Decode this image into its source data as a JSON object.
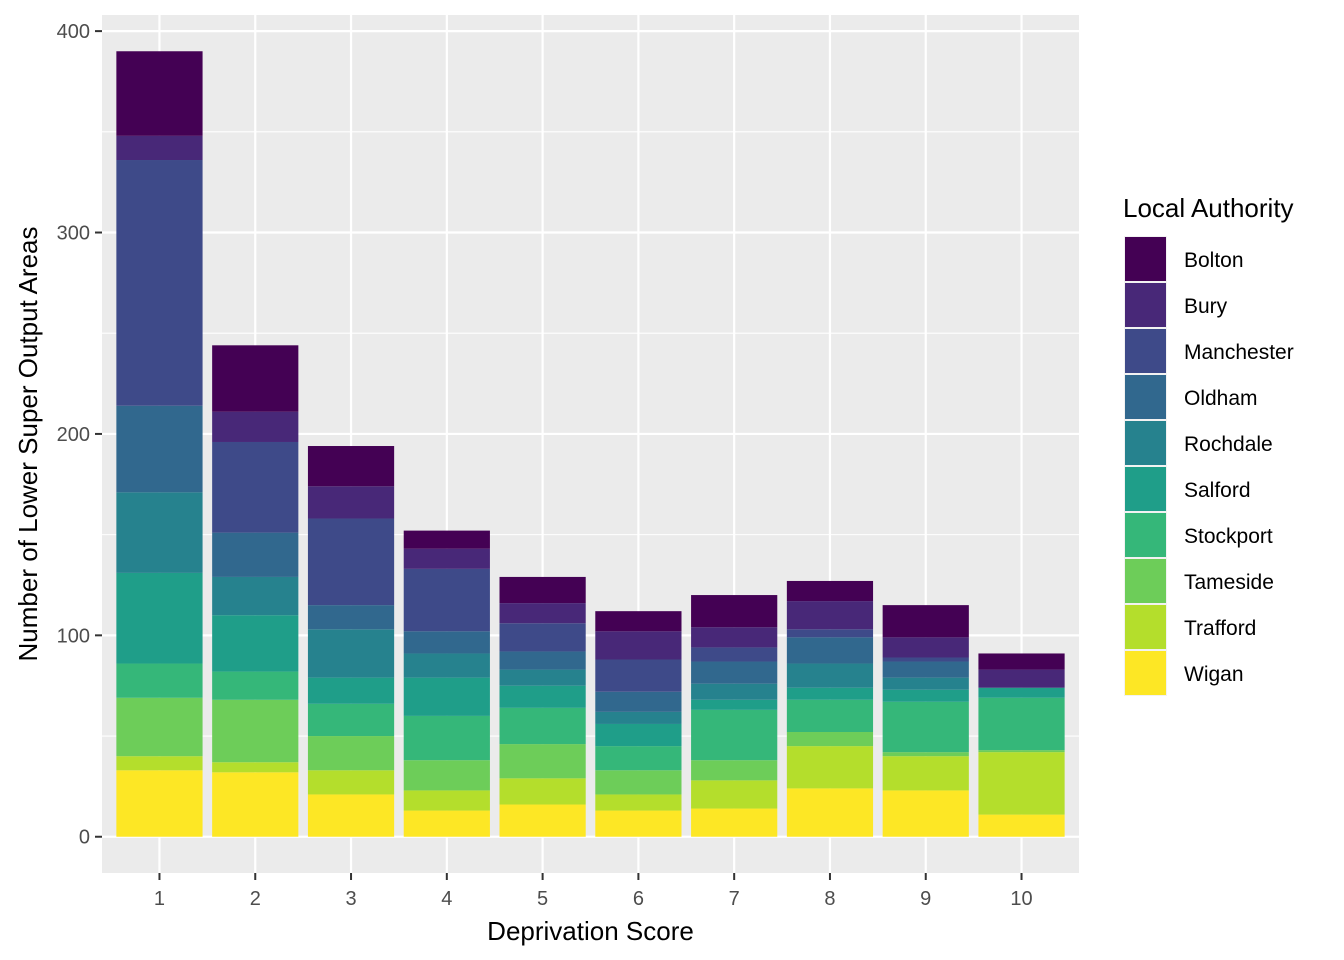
{
  "chart_data": {
    "type": "bar",
    "stacked": true,
    "xlabel": "Deprivation Score",
    "ylabel": "Number of Lower Super Output Areas",
    "categories": [
      "1",
      "2",
      "3",
      "4",
      "5",
      "6",
      "7",
      "8",
      "9",
      "10"
    ],
    "ylim": [
      -18,
      408
    ],
    "yticks": [
      0,
      100,
      200,
      300,
      400
    ],
    "grid": true,
    "legend_title": "Local Authority",
    "legend_position": "right",
    "series": [
      {
        "name": "Bolton",
        "color": "#440154",
        "values": [
          42,
          33,
          20,
          9,
          13,
          10,
          16,
          10,
          16,
          8
        ]
      },
      {
        "name": "Bury",
        "color": "#482878",
        "values": [
          12,
          15,
          16,
          10,
          10,
          14,
          10,
          14,
          10,
          9
        ]
      },
      {
        "name": "Manchester",
        "color": "#3E4A89",
        "values": [
          122,
          45,
          43,
          31,
          14,
          16,
          7,
          4,
          2,
          0
        ]
      },
      {
        "name": "Oldham",
        "color": "#31688E",
        "values": [
          43,
          22,
          12,
          11,
          9,
          10,
          11,
          13,
          8,
          0
        ]
      },
      {
        "name": "Rochdale",
        "color": "#26828E",
        "values": [
          40,
          19,
          24,
          12,
          8,
          6,
          8,
          12,
          6,
          0
        ]
      },
      {
        "name": "Salford",
        "color": "#1F9E89",
        "values": [
          45,
          28,
          13,
          19,
          11,
          11,
          5,
          6,
          6,
          5
        ]
      },
      {
        "name": "Stockport",
        "color": "#35B779",
        "values": [
          17,
          14,
          16,
          22,
          18,
          12,
          25,
          16,
          25,
          26
        ]
      },
      {
        "name": "Tameside",
        "color": "#6DCD59",
        "values": [
          29,
          31,
          17,
          15,
          17,
          12,
          10,
          7,
          2,
          1
        ]
      },
      {
        "name": "Trafford",
        "color": "#B4DE2C",
        "values": [
          7,
          5,
          12,
          10,
          13,
          8,
          14,
          21,
          17,
          31
        ]
      },
      {
        "name": "Wigan",
        "color": "#FDE725",
        "values": [
          33,
          32,
          21,
          13,
          16,
          13,
          14,
          24,
          23,
          11
        ]
      }
    ]
  }
}
